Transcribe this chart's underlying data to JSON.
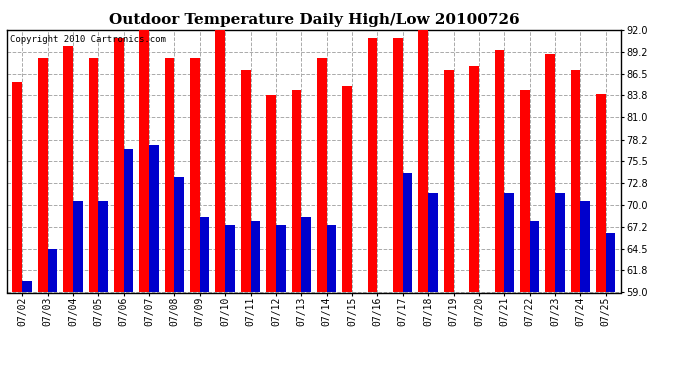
{
  "title": "Outdoor Temperature Daily High/Low 20100726",
  "copyright": "Copyright 2010 Cartronics.com",
  "dates": [
    "07/02",
    "07/03",
    "07/04",
    "07/05",
    "07/06",
    "07/07",
    "07/08",
    "07/09",
    "07/10",
    "07/11",
    "07/12",
    "07/13",
    "07/14",
    "07/15",
    "07/16",
    "07/17",
    "07/18",
    "07/19",
    "07/20",
    "07/21",
    "07/22",
    "07/23",
    "07/24",
    "07/25"
  ],
  "highs": [
    85.5,
    88.5,
    90.0,
    88.5,
    91.0,
    92.0,
    88.5,
    88.5,
    92.0,
    87.0,
    83.8,
    84.5,
    88.5,
    85.0,
    91.0,
    91.0,
    92.0,
    87.0,
    87.5,
    89.5,
    84.5,
    89.0,
    87.0,
    84.0
  ],
  "lows": [
    60.5,
    64.5,
    70.5,
    70.5,
    77.0,
    77.5,
    73.5,
    68.5,
    67.5,
    68.0,
    67.5,
    68.5,
    67.5,
    59.0,
    59.0,
    74.0,
    71.5,
    59.0,
    59.0,
    71.5,
    68.0,
    71.5,
    70.5,
    66.5
  ],
  "high_color": "#ff0000",
  "low_color": "#0000cc",
  "bg_color": "#ffffff",
  "plot_bg_color": "#ffffff",
  "grid_color": "#aaaaaa",
  "ylim_min": 59.0,
  "ylim_max": 92.0,
  "yticks": [
    59.0,
    61.8,
    64.5,
    67.2,
    70.0,
    72.8,
    75.5,
    78.2,
    81.0,
    83.8,
    86.5,
    89.2,
    92.0
  ],
  "title_fontsize": 11,
  "copyright_fontsize": 6.5,
  "tick_fontsize": 7,
  "bar_width": 0.38
}
